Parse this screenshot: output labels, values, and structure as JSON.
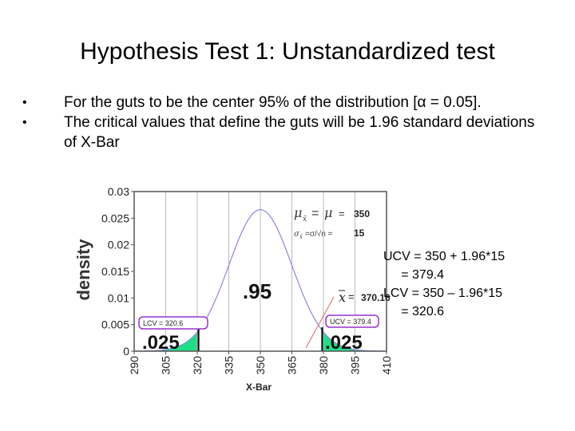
{
  "slide": {
    "title": "Hypothesis Test 1: Unstandardized test",
    "bullets": [
      "For the guts to be the center 95% of the distribution [α = 0.05].",
      "The critical values that define the guts will be 1.96 standard deviations of X-Bar"
    ],
    "calc_lines": [
      "UCV = 350 + 1.96*15",
      "     = 379.4",
      "LCV = 350 – 1.96*15",
      "     = 320.6"
    ]
  },
  "chart_data": {
    "type": "area",
    "distribution": "normal",
    "mean": 350,
    "sd": 15,
    "xlabel": "X-Bar",
    "ylabel": "density",
    "xlim": [
      290,
      410
    ],
    "ylim": [
      0,
      0.03
    ],
    "x_ticks": [
      290,
      305,
      320,
      335,
      350,
      365,
      380,
      395,
      410
    ],
    "y_ticks": [
      "0",
      "0.005",
      "0.01",
      "0.015",
      "0.02",
      "0.025",
      "0.03"
    ],
    "critical_values": {
      "lcv": 320.6,
      "ucv": 379.4
    },
    "observed": 370.16,
    "labels": {
      "lcv_box": "LCV = 320.6",
      "ucv_box": "UCV = 379.4",
      "center_area": ".95",
      "left_tail": ".025",
      "right_tail": ".025",
      "mu_value": "350",
      "sigma_value": "15",
      "xbar_value": "370.16"
    },
    "colors": {
      "tail": "#22dd88",
      "curve": "#8888dd",
      "box": "#9933cc",
      "critical_line": "#000000"
    }
  }
}
